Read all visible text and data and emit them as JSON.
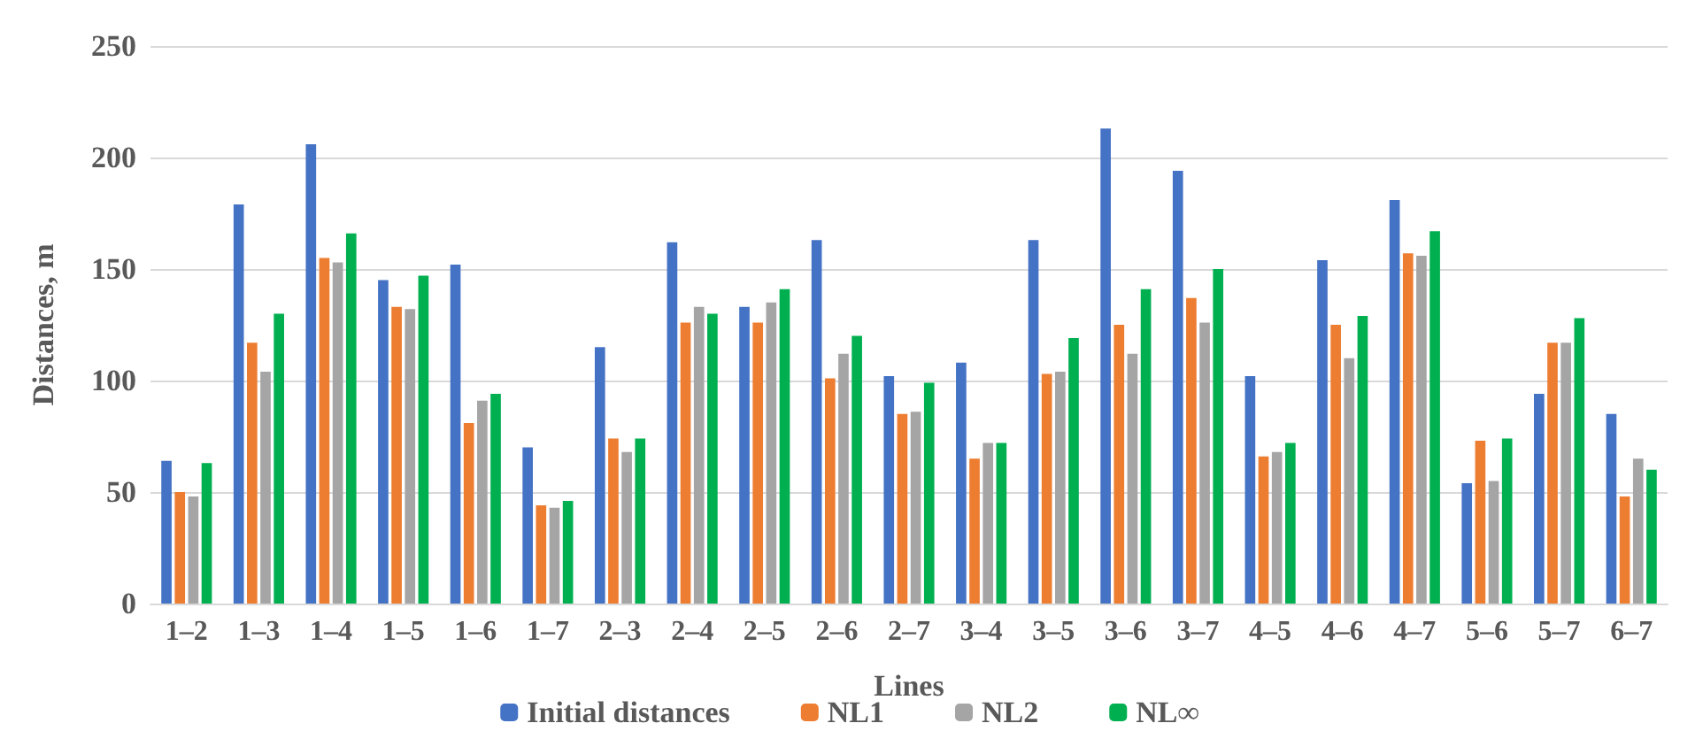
{
  "chart_data": {
    "type": "bar",
    "xlabel": "Lines",
    "ylabel": "Distances, m",
    "categories": [
      "1–2",
      "1–3",
      "1–4",
      "1–5",
      "1–6",
      "1–7",
      "2–3",
      "2–4",
      "2–5",
      "2–6",
      "2–7",
      "3–4",
      "3–5",
      "3–6",
      "3–7",
      "4–5",
      "4–6",
      "4–7",
      "5–6",
      "5–7",
      "6–7"
    ],
    "series": [
      {
        "name": "Initial distances",
        "color": "#4472c4",
        "values": [
          64,
          179,
          206,
          145,
          152,
          70,
          115,
          162,
          133,
          163,
          102,
          108,
          163,
          213,
          194,
          102,
          154,
          181,
          54,
          94,
          85
        ]
      },
      {
        "name": "NL1",
        "color": "#ed7d31",
        "values": [
          50,
          117,
          155,
          133,
          81,
          44,
          74,
          126,
          126,
          101,
          85,
          65,
          103,
          125,
          137,
          66,
          125,
          157,
          73,
          117,
          48
        ]
      },
      {
        "name": "NL2",
        "color": "#a5a5a5",
        "values": [
          48,
          104,
          153,
          132,
          91,
          43,
          68,
          133,
          135,
          112,
          86,
          72,
          104,
          112,
          126,
          68,
          110,
          156,
          55,
          117,
          65
        ]
      },
      {
        "name": "NL∞",
        "color": "#00b050",
        "values": [
          63,
          130,
          166,
          147,
          94,
          46,
          74,
          130,
          141,
          120,
          99,
          72,
          119,
          141,
          150,
          72,
          129,
          167,
          74,
          128,
          60
        ]
      }
    ],
    "ylim": [
      0,
      250
    ],
    "yticks": [
      0,
      50,
      100,
      150,
      200,
      250
    ],
    "grid": "y",
    "legend": "bottom"
  }
}
